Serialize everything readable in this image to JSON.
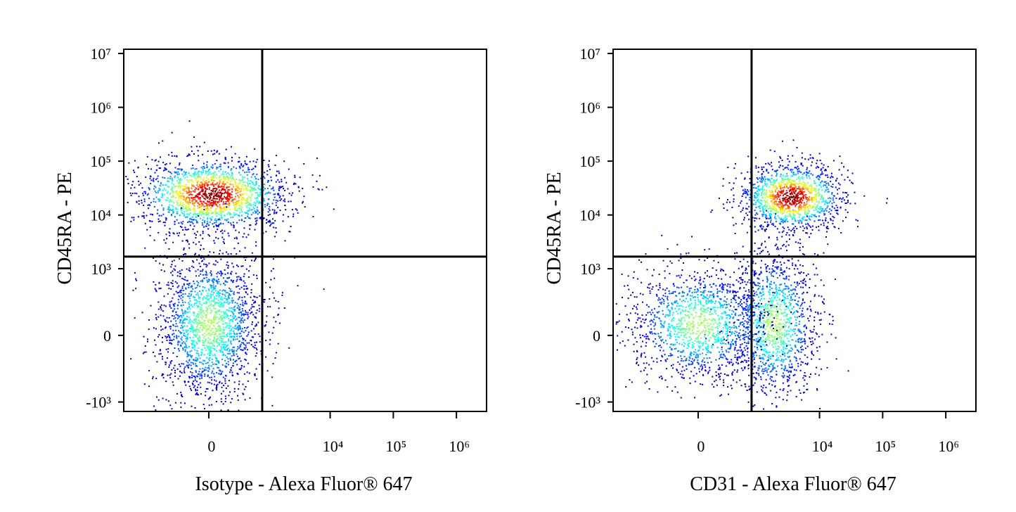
{
  "chart_data": [
    {
      "type": "flow-density",
      "x_label": "Isotype - Alexa Fluor® 647",
      "y_label": "CD45RA - PE",
      "xlim": [
        -2650,
        3000000
      ],
      "ylim": [
        -1500,
        12000000
      ],
      "xticks": [
        0,
        {
          "value": 10000,
          "label": "10⁴"
        },
        {
          "value": 100000,
          "label": "10⁵"
        },
        {
          "value": 1000000,
          "label": "10⁶"
        }
      ],
      "yticks": [
        {
          "value": 10000000,
          "label": "10⁷"
        },
        {
          "value": 1000000,
          "label": "10⁶"
        },
        {
          "value": 100000,
          "label": "10⁵"
        },
        {
          "value": 10000,
          "label": "10⁴"
        },
        {
          "value": 1000,
          "label": "10³"
        },
        0,
        {
          "value": -1000,
          "label": "-10³"
        }
      ],
      "gates": {
        "x": 822,
        "y": 1685
      },
      "populations": [
        {
          "x": 20,
          "y": 24600
        },
        {
          "x": 0,
          "y": 60
        }
      ]
    },
    {
      "type": "flow-density",
      "x_label": "CD31 - Alexa Fluor® 647",
      "y_label": "CD45RA - PE",
      "xlim": [
        -2650,
        3000000
      ],
      "ylim": [
        -1500,
        12000000
      ],
      "xticks": [
        0,
        {
          "value": 10000,
          "label": "10⁴"
        },
        {
          "value": 100000,
          "label": "10⁵"
        },
        {
          "value": 1000000,
          "label": "10⁶"
        }
      ],
      "yticks": [
        {
          "value": 10000000,
          "label": "10⁷"
        },
        {
          "value": 1000000,
          "label": "10⁶"
        },
        {
          "value": 100000,
          "label": "10⁵"
        },
        {
          "value": 10000,
          "label": "10⁴"
        },
        {
          "value": 1000,
          "label": "10³"
        },
        0,
        {
          "value": -1000,
          "label": "-10³"
        }
      ],
      "gates": {
        "x": 822,
        "y": 1685
      },
      "populations": [
        {
          "x": 3500,
          "y": 22000
        },
        {
          "x": 1850,
          "y": 60
        },
        {
          "x": 0,
          "y": 60
        }
      ]
    }
  ]
}
